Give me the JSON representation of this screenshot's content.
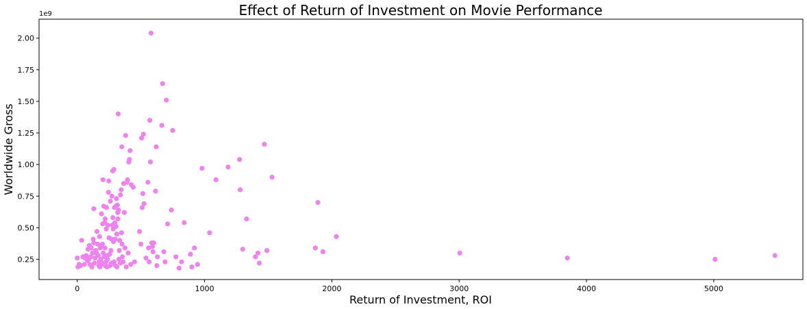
{
  "chart_data": {
    "type": "scatter",
    "title": "Effect of Return of Investment on Movie Performance",
    "xlabel": "Return of Investment, ROI",
    "ylabel": "Worldwide Gross",
    "y_offset_label": "1e9",
    "xlim": [
      -300,
      5700
    ],
    "ylim": [
      0.09,
      2.15
    ],
    "x_ticks": [
      0,
      1000,
      2000,
      3000,
      4000,
      5000
    ],
    "x_tick_labels": [
      "0",
      "1000",
      "2000",
      "3000",
      "4000",
      "5000"
    ],
    "y_ticks": [
      0.25,
      0.5,
      0.75,
      1.0,
      1.25,
      1.5,
      1.75,
      2.0
    ],
    "y_tick_labels": [
      "0.25",
      "0.50",
      "0.75",
      "1.00",
      "1.25",
      "1.50",
      "1.75",
      "2.00"
    ],
    "grid": false,
    "marker_color": "#ee82ee",
    "points": [
      [
        0,
        0.26
      ],
      [
        5,
        0.19
      ],
      [
        15,
        0.21
      ],
      [
        25,
        0.2
      ],
      [
        35,
        0.4
      ],
      [
        45,
        0.27
      ],
      [
        55,
        0.21
      ],
      [
        60,
        0.26
      ],
      [
        70,
        0.28
      ],
      [
        80,
        0.24
      ],
      [
        85,
        0.33
      ],
      [
        90,
        0.25
      ],
      [
        95,
        0.36
      ],
      [
        100,
        0.21
      ],
      [
        105,
        0.27
      ],
      [
        110,
        0.34
      ],
      [
        115,
        0.19
      ],
      [
        120,
        0.3
      ],
      [
        125,
        0.41
      ],
      [
        130,
        0.38
      ],
      [
        130,
        0.65
      ],
      [
        135,
        0.22
      ],
      [
        140,
        0.26
      ],
      [
        145,
        0.32
      ],
      [
        150,
        0.3
      ],
      [
        155,
        0.47
      ],
      [
        160,
        0.37
      ],
      [
        165,
        0.28
      ],
      [
        170,
        0.2
      ],
      [
        172,
        0.23
      ],
      [
        175,
        0.43
      ],
      [
        178,
        0.19
      ],
      [
        180,
        0.34
      ],
      [
        185,
        0.25
      ],
      [
        190,
        0.61
      ],
      [
        192,
        0.36
      ],
      [
        195,
        0.22
      ],
      [
        198,
        0.37
      ],
      [
        200,
        0.53
      ],
      [
        202,
        0.88
      ],
      [
        205,
        0.3
      ],
      [
        208,
        0.67
      ],
      [
        210,
        0.21
      ],
      [
        212,
        0.27
      ],
      [
        215,
        0.54
      ],
      [
        218,
        0.34
      ],
      [
        220,
        0.57
      ],
      [
        222,
        0.2
      ],
      [
        225,
        0.23
      ],
      [
        228,
        0.49
      ],
      [
        230,
        0.66
      ],
      [
        232,
        0.19
      ],
      [
        235,
        0.28
      ],
      [
        238,
        0.25
      ],
      [
        240,
        0.52
      ],
      [
        245,
        0.78
      ],
      [
        248,
        0.87
      ],
      [
        250,
        0.42
      ],
      [
        255,
        0.29
      ],
      [
        258,
        0.2
      ],
      [
        260,
        0.71
      ],
      [
        265,
        0.32
      ],
      [
        268,
        0.22
      ],
      [
        270,
        0.41
      ],
      [
        272,
        0.75
      ],
      [
        275,
        0.52
      ],
      [
        278,
        0.95
      ],
      [
        280,
        0.58
      ],
      [
        282,
        0.49
      ],
      [
        285,
        0.39
      ],
      [
        288,
        0.96
      ],
      [
        290,
        0.23
      ],
      [
        292,
        0.66
      ],
      [
        295,
        0.54
      ],
      [
        298,
        0.41
      ],
      [
        300,
        0.2
      ],
      [
        302,
        0.67
      ],
      [
        305,
        0.51
      ],
      [
        308,
        0.73
      ],
      [
        310,
        0.45
      ],
      [
        312,
        0.19
      ],
      [
        315,
        0.68
      ],
      [
        318,
        0.62
      ],
      [
        320,
        0.57
      ],
      [
        322,
        1.4
      ],
      [
        325,
        0.64
      ],
      [
        328,
        0.25
      ],
      [
        330,
        0.32
      ],
      [
        333,
        0.4
      ],
      [
        338,
        0.22
      ],
      [
        340,
        0.76
      ],
      [
        345,
        0.8
      ],
      [
        348,
        0.46
      ],
      [
        350,
        1.14
      ],
      [
        352,
        0.37
      ],
      [
        355,
        0.27
      ],
      [
        360,
        0.23
      ],
      [
        365,
        0.85
      ],
      [
        370,
        0.62
      ],
      [
        375,
        0.34
      ],
      [
        380,
        1.23
      ],
      [
        385,
        0.19
      ],
      [
        390,
        0.86
      ],
      [
        395,
        0.88
      ],
      [
        400,
        0.3
      ],
      [
        405,
        1.02
      ],
      [
        410,
        1.04
      ],
      [
        415,
        1.11
      ],
      [
        420,
        0.21
      ],
      [
        425,
        0.84
      ],
      [
        440,
        0.82
      ],
      [
        450,
        0.23
      ],
      [
        490,
        0.47
      ],
      [
        500,
        0.37
      ],
      [
        505,
        1.21
      ],
      [
        510,
        0.66
      ],
      [
        515,
        0.77
      ],
      [
        520,
        1.24
      ],
      [
        525,
        0.69
      ],
      [
        540,
        0.26
      ],
      [
        555,
        0.86
      ],
      [
        560,
        0.34
      ],
      [
        565,
        0.23
      ],
      [
        570,
        1.35
      ],
      [
        575,
        1.02
      ],
      [
        580,
        2.04
      ],
      [
        585,
        0.38
      ],
      [
        590,
        0.35
      ],
      [
        595,
        0.31
      ],
      [
        600,
        0.38
      ],
      [
        615,
        0.79
      ],
      [
        620,
        1.14
      ],
      [
        625,
        0.2
      ],
      [
        630,
        0.27
      ],
      [
        665,
        1.31
      ],
      [
        670,
        1.64
      ],
      [
        680,
        0.31
      ],
      [
        690,
        0.23
      ],
      [
        700,
        1.51
      ],
      [
        710,
        0.53
      ],
      [
        740,
        0.64
      ],
      [
        750,
        1.27
      ],
      [
        775,
        0.27
      ],
      [
        800,
        0.18
      ],
      [
        820,
        0.23
      ],
      [
        840,
        0.54
      ],
      [
        890,
        0.29
      ],
      [
        900,
        0.19
      ],
      [
        920,
        0.34
      ],
      [
        945,
        0.21
      ],
      [
        980,
        0.97
      ],
      [
        1040,
        0.46
      ],
      [
        1090,
        0.88
      ],
      [
        1185,
        0.98
      ],
      [
        1275,
        1.04
      ],
      [
        1280,
        0.8
      ],
      [
        1300,
        0.33
      ],
      [
        1330,
        0.57
      ],
      [
        1400,
        0.27
      ],
      [
        1420,
        0.3
      ],
      [
        1430,
        0.22
      ],
      [
        1470,
        1.16
      ],
      [
        1490,
        0.32
      ],
      [
        1530,
        0.9
      ],
      [
        1870,
        0.34
      ],
      [
        1890,
        0.7
      ],
      [
        1930,
        0.31
      ],
      [
        2035,
        0.43
      ],
      [
        3005,
        0.3
      ],
      [
        3850,
        0.26
      ],
      [
        5010,
        0.25
      ],
      [
        5480,
        0.28
      ]
    ]
  }
}
